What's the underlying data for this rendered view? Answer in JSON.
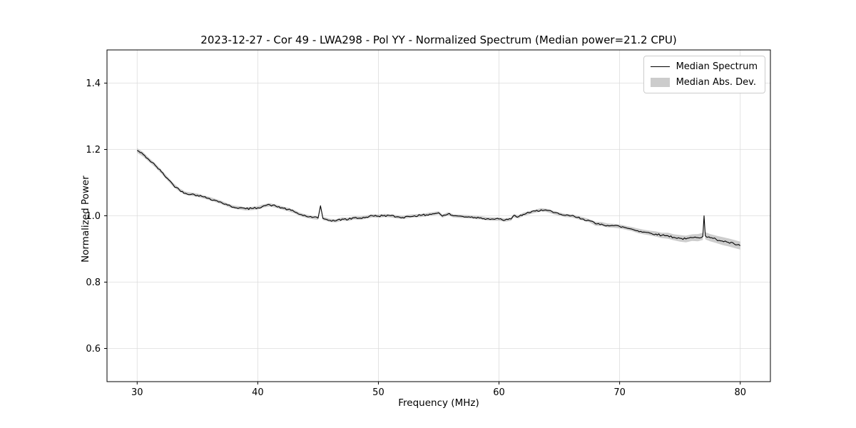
{
  "chart_data": {
    "type": "line",
    "title": "2023-12-27 - Cor 49 - LWA298 - Pol YY - Normalized Spectrum (Median power=21.2 CPU)",
    "xlabel": "Frequency (MHz)",
    "ylabel": "Normalized Power",
    "xlim": [
      27.5,
      82.5
    ],
    "ylim": [
      0.5,
      1.5
    ],
    "x_ticks": [
      30,
      40,
      50,
      60,
      70,
      80
    ],
    "y_ticks": [
      0.6,
      0.8,
      1.0,
      1.2,
      1.4
    ],
    "grid": true,
    "colors": {
      "line": "#000000",
      "band": "#c8c8c8",
      "grid": "#dcdcdc",
      "spine": "#000000"
    },
    "legend": {
      "position": "upper right",
      "entries": [
        {
          "label": "Median Spectrum",
          "type": "line",
          "color": "#000000"
        },
        {
          "label": "Median Abs. Dev.",
          "type": "patch",
          "color": "#cccccc"
        }
      ]
    },
    "series": [
      {
        "name": "Median Spectrum",
        "color": "#000000",
        "x": [
          30.0,
          30.5,
          31.0,
          31.5,
          32.0,
          32.5,
          33.0,
          33.5,
          34.0,
          34.5,
          35.0,
          35.5,
          36.0,
          36.5,
          37.0,
          37.5,
          38.0,
          38.5,
          39.0,
          39.5,
          40.0,
          40.5,
          41.0,
          41.5,
          42.0,
          42.5,
          43.0,
          43.5,
          44.0,
          44.5,
          45.0,
          45.2,
          45.4,
          46.0,
          46.5,
          47.0,
          47.5,
          48.0,
          48.5,
          49.0,
          49.5,
          50.0,
          50.5,
          51.0,
          51.5,
          52.0,
          52.5,
          53.0,
          53.5,
          54.0,
          54.5,
          55.0,
          55.3,
          55.8,
          56.2,
          57.0,
          57.5,
          58.0,
          58.5,
          59.0,
          59.5,
          60.0,
          60.5,
          61.0,
          61.2,
          61.6,
          62.0,
          62.5,
          63.0,
          63.5,
          64.0,
          64.5,
          65.0,
          65.5,
          66.0,
          66.5,
          67.0,
          67.5,
          68.0,
          68.5,
          69.0,
          69.5,
          70.0,
          70.5,
          71.0,
          71.5,
          72.0,
          72.5,
          73.0,
          73.5,
          74.0,
          74.5,
          75.0,
          75.5,
          76.0,
          76.5,
          76.9,
          77.0,
          77.1,
          77.5,
          78.0,
          78.5,
          79.0,
          79.5,
          80.0
        ],
        "y": [
          1.197,
          1.185,
          1.168,
          1.152,
          1.133,
          1.113,
          1.093,
          1.078,
          1.068,
          1.065,
          1.062,
          1.057,
          1.052,
          1.046,
          1.04,
          1.032,
          1.026,
          1.024,
          1.021,
          1.022,
          1.024,
          1.03,
          1.033,
          1.029,
          1.024,
          1.019,
          1.013,
          1.004,
          0.999,
          0.995,
          0.993,
          1.03,
          0.992,
          0.986,
          0.985,
          0.99,
          0.989,
          0.994,
          0.993,
          0.996,
          1.0,
          0.999,
          1.001,
          1.0,
          0.997,
          0.995,
          0.998,
          1.0,
          1.001,
          1.003,
          1.006,
          1.009,
          0.999,
          1.006,
          1.0,
          0.998,
          0.997,
          0.995,
          0.994,
          0.991,
          0.99,
          0.99,
          0.987,
          0.99,
          1.0,
          0.997,
          1.004,
          1.009,
          1.014,
          1.018,
          1.016,
          1.01,
          1.005,
          1.001,
          1.0,
          0.995,
          0.99,
          0.985,
          0.976,
          0.975,
          0.971,
          0.97,
          0.968,
          0.964,
          0.96,
          0.955,
          0.951,
          0.948,
          0.945,
          0.941,
          0.94,
          0.935,
          0.932,
          0.93,
          0.934,
          0.934,
          0.938,
          1.0,
          0.94,
          0.934,
          0.929,
          0.924,
          0.92,
          0.915,
          0.91
        ]
      },
      {
        "name": "Median Abs. Dev.",
        "color": "#c8c8c8",
        "band_halfwidth": [
          0.007,
          0.007,
          0.006,
          0.006,
          0.006,
          0.006,
          0.006,
          0.005,
          0.005,
          0.005,
          0.005,
          0.005,
          0.005,
          0.005,
          0.005,
          0.005,
          0.005,
          0.005,
          0.005,
          0.005,
          0.005,
          0.005,
          0.005,
          0.005,
          0.005,
          0.005,
          0.005,
          0.005,
          0.005,
          0.005,
          0.005,
          0.005,
          0.005,
          0.005,
          0.005,
          0.005,
          0.005,
          0.005,
          0.005,
          0.005,
          0.005,
          0.005,
          0.005,
          0.005,
          0.005,
          0.005,
          0.005,
          0.005,
          0.005,
          0.005,
          0.005,
          0.005,
          0.005,
          0.005,
          0.005,
          0.005,
          0.005,
          0.005,
          0.005,
          0.005,
          0.005,
          0.005,
          0.005,
          0.005,
          0.005,
          0.005,
          0.005,
          0.005,
          0.005,
          0.005,
          0.005,
          0.005,
          0.005,
          0.005,
          0.005,
          0.005,
          0.005,
          0.005,
          0.006,
          0.006,
          0.006,
          0.006,
          0.006,
          0.006,
          0.006,
          0.007,
          0.007,
          0.007,
          0.008,
          0.008,
          0.009,
          0.009,
          0.01,
          0.01,
          0.01,
          0.011,
          0.011,
          0.008,
          0.011,
          0.011,
          0.011,
          0.012,
          0.012,
          0.012,
          0.012
        ]
      }
    ]
  }
}
